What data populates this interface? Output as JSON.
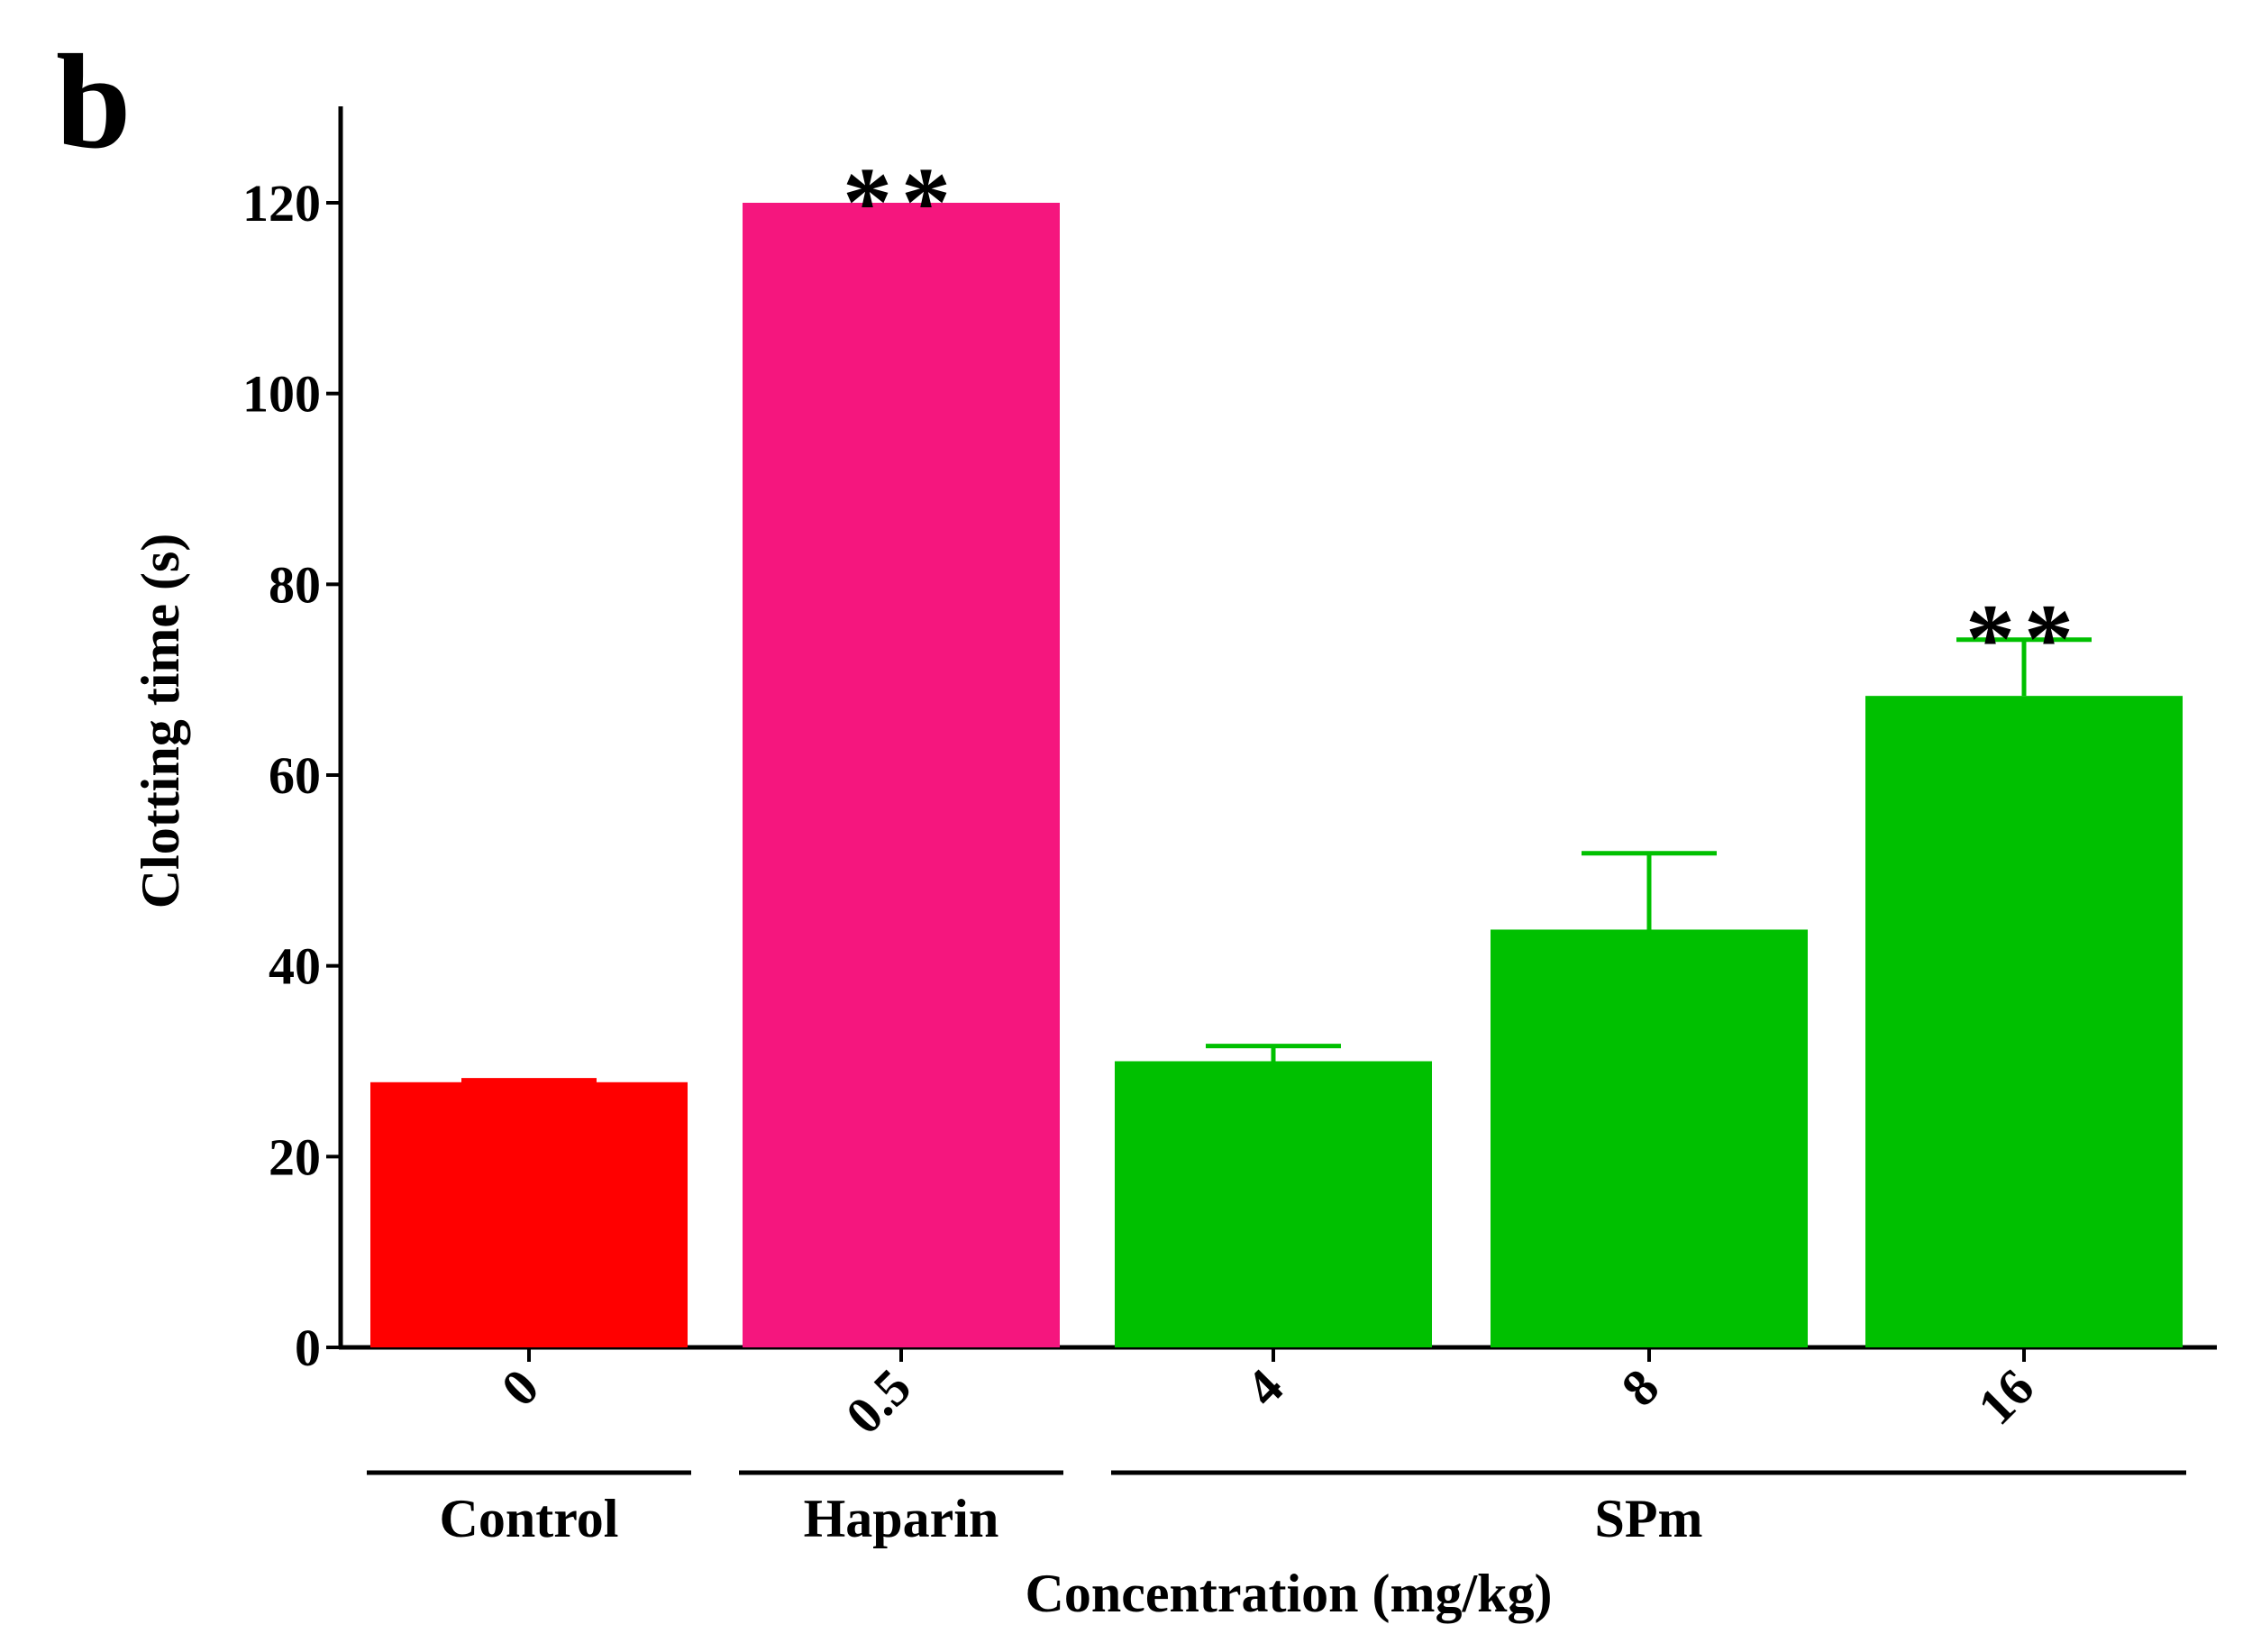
{
  "panel_label": "b",
  "chart_data": {
    "type": "bar",
    "title": "",
    "ylabel": "Clotting time (s)",
    "xlabel": "Concentration (mg/kg)",
    "ylim": [
      0,
      130
    ],
    "yticks": [
      0,
      20,
      40,
      60,
      80,
      100,
      120
    ],
    "categories": [
      "0",
      "0.5",
      "4",
      "8",
      "16"
    ],
    "values": [
      27.8,
      120,
      30,
      43.8,
      68.3
    ],
    "error_upper": [
      28.0,
      120,
      31.6,
      51.8,
      74.2
    ],
    "bar_colors": [
      "#ff0000",
      "#f5167e",
      "#00c000",
      "#00c000",
      "#00c000"
    ],
    "significance": [
      "",
      "**",
      "",
      "",
      "**"
    ],
    "groups": [
      {
        "name": "Control",
        "start": 0,
        "end": 0
      },
      {
        "name": "Haparin",
        "start": 1,
        "end": 1
      },
      {
        "name": "SPm",
        "start": 2,
        "end": 4
      }
    ]
  }
}
